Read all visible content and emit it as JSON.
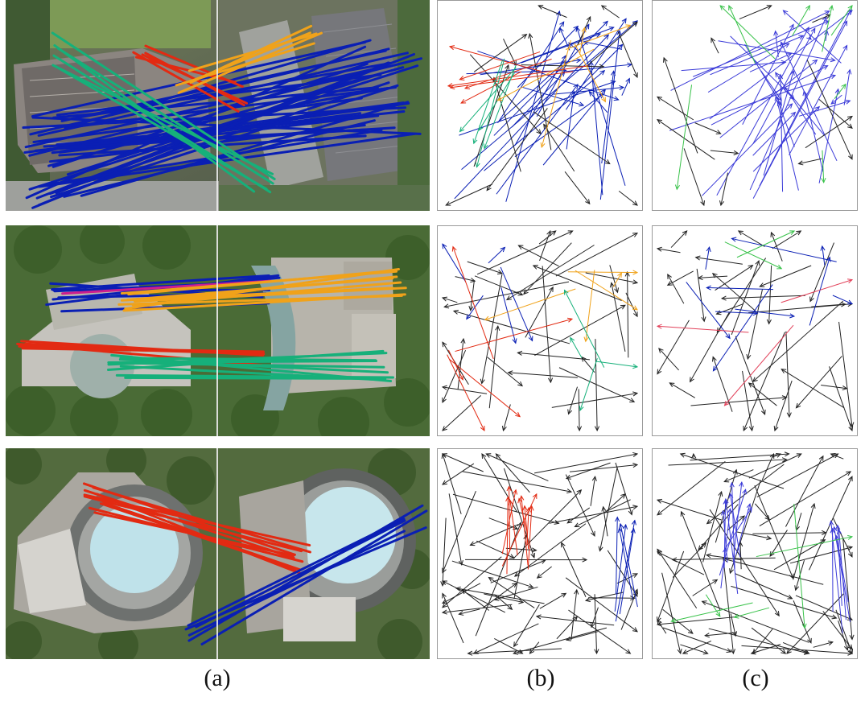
{
  "captions": {
    "a": "(a)",
    "b": "(b)",
    "c": "(c)"
  },
  "colors": {
    "blue": "#0a1fb4",
    "red": "#e22a12",
    "orange": "#f0a21a",
    "green": "#16b07a",
    "magenta": "#cc1e8f",
    "black": "#222222",
    "light_blue": "#3a3ad8",
    "light_green": "#39c24a",
    "pink_red": "#e2415a"
  },
  "rows": [
    {
      "scene": "office-towers",
      "match_colors": [
        "blue",
        "red",
        "orange",
        "green"
      ]
    },
    {
      "scene": "curved-building-trees",
      "match_colors": [
        "blue",
        "magenta",
        "orange",
        "red",
        "green"
      ]
    },
    {
      "scene": "circular-dome-building",
      "match_colors": [
        "red",
        "blue"
      ]
    }
  ]
}
